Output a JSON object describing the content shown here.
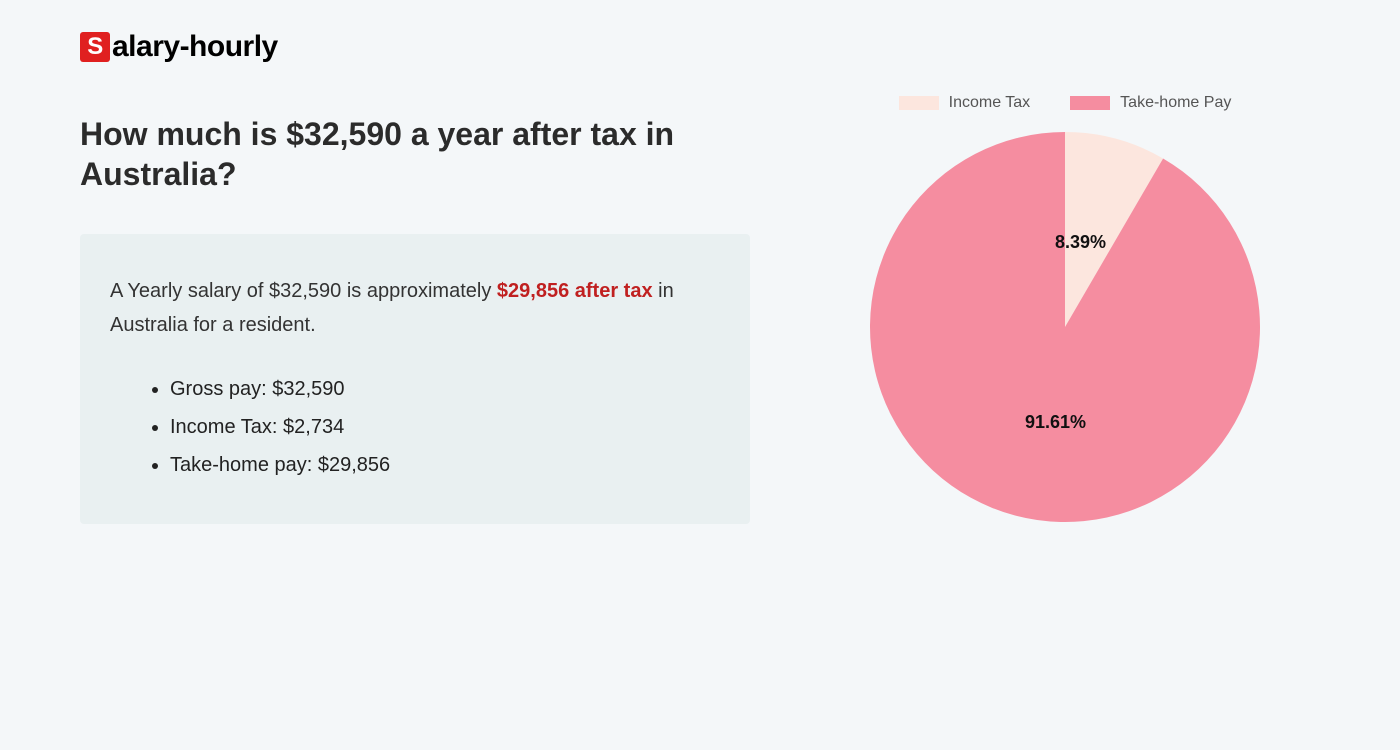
{
  "logo": {
    "badge_letter": "S",
    "rest": "alary-hourly",
    "badge_bg": "#e02020",
    "badge_fg": "#ffffff"
  },
  "heading": "How much is $32,590 a year after tax in Australia?",
  "summary": {
    "prefix": "A Yearly salary of $32,590 is approximately ",
    "highlight": "$29,856 after tax",
    "suffix": " in Australia for a resident.",
    "highlight_color": "#c02020",
    "box_bg": "#e9f0f1"
  },
  "bullets": [
    "Gross pay: $32,590",
    "Income Tax: $2,734",
    "Take-home pay: $29,856"
  ],
  "chart": {
    "type": "pie",
    "background_color": "#f4f7f9",
    "slices": [
      {
        "label": "Income Tax",
        "value": 8.39,
        "color": "#fce6de",
        "display": "8.39%"
      },
      {
        "label": "Take-home Pay",
        "value": 91.61,
        "color": "#f58da0",
        "display": "91.61%"
      }
    ],
    "radius": 195,
    "legend_swatch_height": 14,
    "legend_font_color": "#555555",
    "slice_label_font_size": 18,
    "slice_label_font_weight": 700
  }
}
